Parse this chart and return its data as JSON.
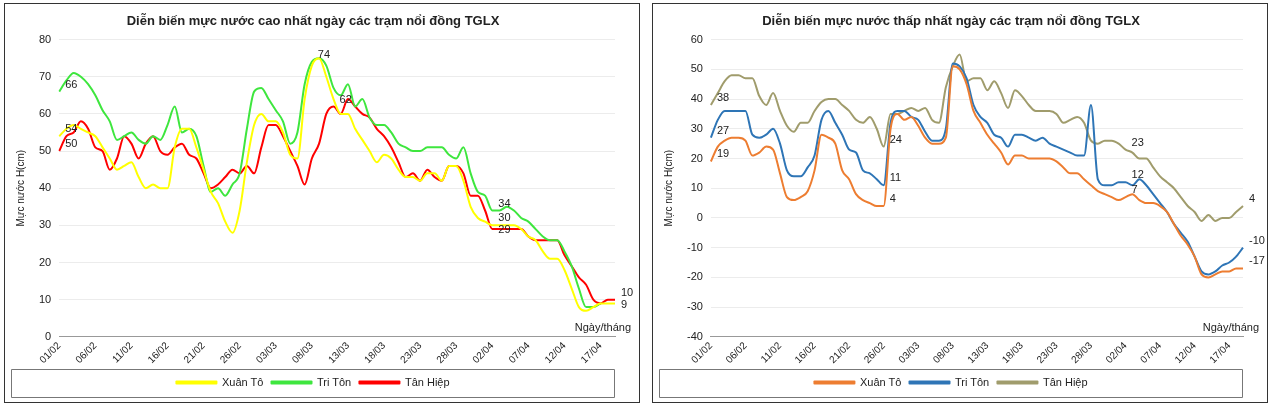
{
  "chart_data": [
    {
      "type": "line",
      "title": "Diễn biến mực nước cao nhất ngày các trạm nổi đồng TGLX",
      "xlabel": "Ngày/tháng",
      "ylabel": "Mực nước H(cm)",
      "categories": [
        "01/02",
        null,
        null,
        null,
        null,
        "06/02",
        null,
        null,
        null,
        null,
        "11/02",
        null,
        null,
        null,
        null,
        "16/02",
        null,
        null,
        null,
        null,
        "21/02",
        null,
        null,
        null,
        null,
        "26/02",
        null,
        null,
        null,
        null,
        "03/03",
        null,
        null,
        null,
        null,
        "08/03",
        null,
        null,
        null,
        null,
        "13/03",
        null,
        null,
        null,
        null,
        "18/03",
        null,
        null,
        null,
        null,
        "23/03",
        null,
        null,
        null,
        null,
        "28/03",
        null,
        null,
        null,
        null,
        "02/04",
        null,
        null,
        null,
        null,
        "07/04",
        null,
        null,
        null,
        null,
        "12/04",
        null,
        null,
        null,
        null,
        "17/04",
        null,
        null
      ],
      "series": [
        {
          "name": "Xuân Tô",
          "color": "#ffff00",
          "values": [
            54,
            56,
            57,
            56,
            55,
            54,
            51,
            48,
            45,
            46,
            47,
            43,
            40,
            41,
            40,
            40,
            51,
            56,
            56,
            51,
            45,
            39,
            36,
            31,
            28,
            34,
            47,
            57,
            60,
            58,
            58,
            55,
            49,
            48,
            64,
            73,
            75,
            70,
            64,
            60,
            60,
            56,
            53,
            50,
            47,
            49,
            48,
            45,
            43,
            43,
            42,
            44,
            44,
            42,
            46,
            46,
            42,
            35,
            32,
            31,
            30,
            30,
            30,
            30,
            29,
            27,
            26,
            23,
            21,
            21,
            18,
            13,
            8,
            7,
            8,
            9,
            9,
            9
          ],
          "value_labels": [
            "54",
            null,
            null,
            null,
            null,
            null,
            null,
            null,
            null,
            null,
            null,
            null,
            null,
            null,
            null,
            null,
            null,
            null,
            null,
            null,
            null,
            null,
            null,
            null,
            null,
            null,
            null,
            null,
            null,
            null,
            null,
            null,
            null,
            null,
            null,
            null,
            null,
            null,
            null,
            null,
            null,
            null,
            null,
            null,
            null,
            null,
            null,
            null,
            null,
            null,
            null,
            null,
            null,
            null,
            null,
            null,
            null,
            null,
            null,
            null,
            "30",
            null,
            null,
            null,
            null,
            null,
            null,
            null,
            null,
            null,
            null,
            null,
            null,
            null,
            null,
            null,
            null,
            "9"
          ]
        },
        {
          "name": "Tri Tôn",
          "color": "#3ee63e",
          "values": [
            66,
            69,
            71,
            70,
            68,
            65,
            61,
            58,
            53,
            54,
            55,
            53,
            52,
            54,
            53,
            57,
            62,
            55,
            56,
            54,
            46,
            39,
            40,
            38,
            41,
            44,
            56,
            66,
            67,
            64,
            61,
            58,
            52,
            55,
            68,
            74,
            75,
            73,
            67,
            65,
            68,
            62,
            64,
            59,
            57,
            57,
            55,
            52,
            51,
            50,
            50,
            51,
            51,
            51,
            49,
            48,
            51,
            44,
            39,
            38,
            34,
            34,
            35,
            34,
            32,
            31,
            29,
            27,
            26,
            26,
            23,
            19,
            13,
            8,
            8,
            9,
            null,
            null
          ],
          "value_labels": [
            "66",
            null,
            null,
            null,
            null,
            null,
            null,
            null,
            null,
            null,
            null,
            null,
            null,
            null,
            null,
            null,
            null,
            null,
            null,
            null,
            null,
            null,
            null,
            null,
            null,
            null,
            null,
            null,
            null,
            null,
            null,
            null,
            null,
            null,
            null,
            "74",
            null,
            null,
            null,
            null,
            null,
            null,
            null,
            null,
            null,
            null,
            null,
            null,
            null,
            null,
            null,
            null,
            null,
            null,
            null,
            null,
            null,
            null,
            null,
            null,
            "34",
            null,
            null,
            null,
            null,
            null,
            null,
            null,
            null,
            null,
            null,
            null,
            null,
            null,
            null,
            null,
            null,
            null
          ]
        },
        {
          "name": "Tân Hiệp",
          "color": "#ff0000",
          "values": [
            50,
            54,
            55,
            58,
            56,
            51,
            50,
            45,
            48,
            54,
            52,
            48,
            52,
            54,
            50,
            49,
            51,
            52,
            49,
            48,
            44,
            40,
            41,
            43,
            45,
            44,
            46,
            44,
            51,
            57,
            57,
            54,
            50,
            46,
            41,
            48,
            52,
            60,
            62,
            60,
            64,
            62,
            60,
            59,
            56,
            54,
            51,
            47,
            43,
            44,
            42,
            45,
            43,
            42,
            46,
            46,
            44,
            38,
            38,
            34,
            29,
            29,
            29,
            29,
            29,
            27,
            26,
            26,
            26,
            26,
            22,
            19,
            16,
            14,
            10,
            9,
            10,
            10
          ],
          "value_labels": [
            "50",
            null,
            null,
            null,
            null,
            null,
            null,
            null,
            null,
            null,
            null,
            null,
            null,
            null,
            null,
            null,
            null,
            null,
            null,
            null,
            null,
            null,
            null,
            null,
            null,
            null,
            null,
            null,
            null,
            null,
            null,
            null,
            null,
            null,
            null,
            null,
            null,
            null,
            "62",
            null,
            null,
            null,
            null,
            null,
            null,
            null,
            null,
            null,
            null,
            null,
            null,
            null,
            null,
            null,
            null,
            null,
            null,
            null,
            null,
            null,
            "29",
            null,
            null,
            null,
            null,
            null,
            null,
            null,
            null,
            null,
            null,
            null,
            null,
            null,
            null,
            null,
            null,
            "10"
          ]
        }
      ],
      "ylim": [
        0,
        80
      ],
      "yticks": [
        0,
        10,
        20,
        30,
        40,
        50,
        60,
        70,
        80
      ],
      "grid": "y",
      "legend": "bottom",
      "marker": "none",
      "line_style": "solid"
    },
    {
      "type": "line",
      "title": "Diễn biến mực nước thấp nhất ngày các trạm nổi đồng TGLX",
      "xlabel": "Ngày/tháng",
      "ylabel": "Mực nước H(cm)",
      "categories": [
        "01/02",
        null,
        null,
        null,
        null,
        "06/02",
        null,
        null,
        null,
        null,
        "11/02",
        null,
        null,
        null,
        null,
        "16/02",
        null,
        null,
        null,
        null,
        "21/02",
        null,
        null,
        null,
        null,
        "26/02",
        null,
        null,
        null,
        null,
        "03/03",
        null,
        null,
        null,
        null,
        "08/03",
        null,
        null,
        null,
        null,
        "13/03",
        null,
        null,
        null,
        null,
        "18/03",
        null,
        null,
        null,
        null,
        "23/03",
        null,
        null,
        null,
        null,
        "28/03",
        null,
        null,
        null,
        null,
        "02/04",
        null,
        null,
        null,
        null,
        "07/04",
        null,
        null,
        null,
        null,
        "12/04",
        null,
        null,
        null,
        null,
        "17/04",
        null,
        null
      ],
      "series": [
        {
          "name": "Xuân Tô",
          "color": "#ed7d31",
          "values": [
            19,
            24,
            26,
            27,
            27,
            26,
            21,
            22,
            24,
            23,
            15,
            7,
            6,
            7,
            9,
            16,
            28,
            27,
            25,
            16,
            13,
            8,
            6,
            5,
            4,
            4,
            30,
            35,
            33,
            34,
            31,
            27,
            25,
            25,
            27,
            51,
            50,
            45,
            36,
            32,
            28,
            25,
            22,
            18,
            21,
            21,
            20,
            20,
            20,
            20,
            19,
            17,
            15,
            15,
            13,
            11,
            9,
            8,
            7,
            6,
            7,
            8,
            6,
            5,
            5,
            4,
            2,
            -2,
            -6,
            -9,
            -13,
            -19,
            -20,
            -19,
            -18,
            -18,
            -17,
            -17
          ],
          "value_labels": [
            "19",
            null,
            null,
            null,
            null,
            null,
            null,
            null,
            null,
            null,
            null,
            null,
            null,
            null,
            null,
            null,
            null,
            null,
            null,
            null,
            null,
            null,
            null,
            null,
            null,
            "4",
            null,
            null,
            null,
            null,
            null,
            null,
            null,
            null,
            null,
            null,
            null,
            null,
            null,
            null,
            null,
            null,
            null,
            null,
            null,
            null,
            null,
            null,
            null,
            null,
            null,
            null,
            null,
            null,
            null,
            null,
            null,
            null,
            null,
            null,
            "7",
            null,
            null,
            null,
            null,
            null,
            null,
            null,
            null,
            null,
            null,
            null,
            null,
            null,
            null,
            null,
            null,
            "-17"
          ]
        },
        {
          "name": "Tri Tôn",
          "color": "#2e75b6",
          "values": [
            27,
            33,
            36,
            36,
            36,
            36,
            28,
            27,
            28,
            30,
            25,
            16,
            14,
            14,
            17,
            21,
            33,
            36,
            32,
            28,
            23,
            22,
            16,
            15,
            13,
            11,
            32,
            36,
            36,
            34,
            33,
            29,
            26,
            26,
            30,
            52,
            51,
            47,
            38,
            34,
            32,
            28,
            27,
            24,
            28,
            28,
            27,
            26,
            27,
            25,
            24,
            23,
            22,
            21,
            21,
            38,
            13,
            11,
            11,
            12,
            12,
            11,
            13,
            11,
            8,
            5,
            2,
            -2,
            -5,
            -8,
            -13,
            -18,
            -19,
            -18,
            -16,
            -15,
            -13,
            -10
          ],
          "value_labels": [
            "27",
            null,
            null,
            null,
            null,
            null,
            null,
            null,
            null,
            null,
            null,
            null,
            null,
            null,
            null,
            null,
            null,
            null,
            null,
            null,
            null,
            null,
            null,
            null,
            null,
            "11",
            null,
            null,
            null,
            null,
            null,
            null,
            null,
            null,
            null,
            null,
            null,
            null,
            null,
            null,
            null,
            null,
            null,
            null,
            null,
            null,
            null,
            null,
            null,
            null,
            null,
            null,
            null,
            null,
            null,
            null,
            null,
            null,
            null,
            null,
            "12",
            null,
            null,
            null,
            null,
            null,
            null,
            null,
            null,
            null,
            null,
            null,
            null,
            null,
            null,
            null,
            null,
            "-10"
          ]
        },
        {
          "name": "Tân Hiệp",
          "color": "#a09c6c",
          "values": [
            38,
            42,
            46,
            48,
            48,
            47,
            47,
            41,
            38,
            42,
            36,
            31,
            29,
            32,
            32,
            36,
            39,
            40,
            40,
            38,
            36,
            33,
            32,
            34,
            30,
            24,
            35,
            35,
            36,
            37,
            36,
            37,
            33,
            32,
            44,
            51,
            55,
            46,
            47,
            47,
            43,
            46,
            42,
            37,
            43,
            41,
            38,
            36,
            36,
            36,
            35,
            32,
            33,
            34,
            32,
            26,
            25,
            26,
            26,
            25,
            23,
            22,
            20,
            20,
            17,
            14,
            12,
            10,
            7,
            4,
            2,
            -1,
            1,
            -1,
            0,
            0,
            2,
            4
          ],
          "value_labels": [
            "38",
            null,
            null,
            null,
            null,
            null,
            null,
            null,
            null,
            null,
            null,
            null,
            null,
            null,
            null,
            null,
            null,
            null,
            null,
            null,
            null,
            null,
            null,
            null,
            null,
            "24",
            null,
            null,
            null,
            null,
            null,
            null,
            null,
            null,
            null,
            null,
            null,
            null,
            null,
            null,
            null,
            null,
            null,
            null,
            null,
            null,
            null,
            null,
            null,
            null,
            null,
            null,
            null,
            null,
            null,
            null,
            null,
            null,
            null,
            null,
            "23",
            null,
            null,
            null,
            null,
            null,
            null,
            null,
            null,
            null,
            null,
            null,
            null,
            null,
            null,
            null,
            null,
            "4"
          ]
        }
      ],
      "ylim": [
        -40,
        60
      ],
      "yticks": [
        -40,
        -30,
        -20,
        -10,
        0,
        10,
        20,
        30,
        40,
        50,
        60
      ],
      "grid": "y",
      "legend": "bottom",
      "marker": "none",
      "line_style": "solid"
    }
  ]
}
